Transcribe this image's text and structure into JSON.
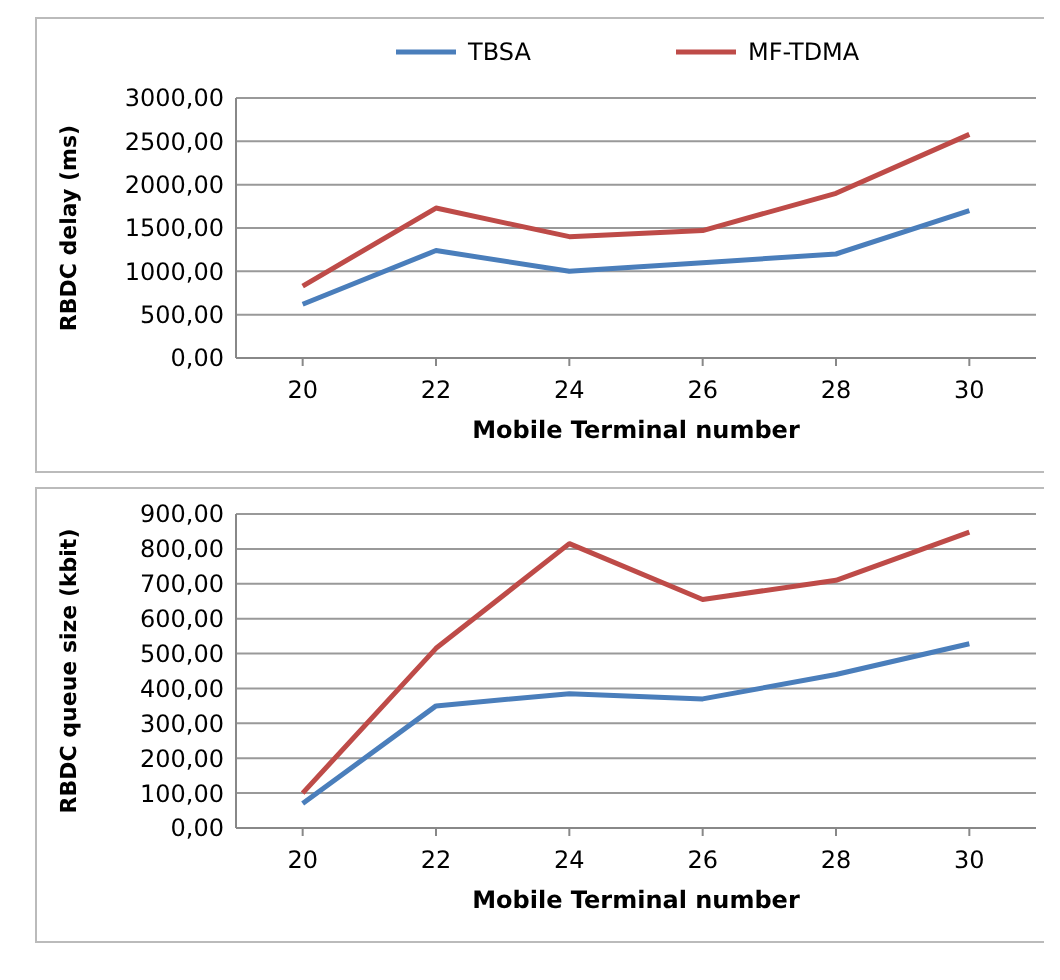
{
  "chart_data": [
    {
      "type": "line",
      "xlabel": "Mobile Terminal number",
      "ylabel": "RBDC delay (ms)",
      "categories": [
        "20",
        "22",
        "24",
        "26",
        "28",
        "30"
      ],
      "series": [
        {
          "name": "TBSA",
          "color": "#4a7ebb",
          "values": [
            620,
            1240,
            1000,
            1100,
            1200,
            1700
          ]
        },
        {
          "name": "MF-TDMA",
          "color": "#be4b48",
          "values": [
            830,
            1730,
            1400,
            1470,
            1900,
            2580
          ]
        }
      ],
      "ylim": [
        0,
        3000
      ],
      "yticks": [
        {
          "value": 0,
          "label": "0,00"
        },
        {
          "value": 500,
          "label": "500,00"
        },
        {
          "value": 1000,
          "label": "1000,00"
        },
        {
          "value": 1500,
          "label": "1500,00"
        },
        {
          "value": 2000,
          "label": "2000,00"
        },
        {
          "value": 2500,
          "label": "2500,00"
        },
        {
          "value": 3000,
          "label": "3000,00"
        }
      ],
      "grid": "y",
      "legend": "top",
      "marker": "none"
    },
    {
      "type": "line",
      "xlabel": "Mobile Terminal number",
      "ylabel": "RBDC queue size (kbit)",
      "categories": [
        "20",
        "22",
        "24",
        "26",
        "28",
        "30"
      ],
      "series": [
        {
          "color": "#4a7ebb",
          "values": [
            70,
            350,
            385,
            370,
            440,
            528
          ]
        },
        {
          "color": "#be4b48",
          "values": [
            100,
            515,
            815,
            655,
            710,
            848
          ]
        }
      ],
      "ylim": [
        0,
        900
      ],
      "yticks": [
        {
          "value": 0,
          "label": "0,00"
        },
        {
          "value": 100,
          "label": "100,00"
        },
        {
          "value": 200,
          "label": "200,00"
        },
        {
          "value": 300,
          "label": "300,00"
        },
        {
          "value": 400,
          "label": "400,00"
        },
        {
          "value": 500,
          "label": "500,00"
        },
        {
          "value": 600,
          "label": "600,00"
        },
        {
          "value": 700,
          "label": "700,00"
        },
        {
          "value": 800,
          "label": "800,00"
        },
        {
          "value": 900,
          "label": "900,00"
        }
      ],
      "grid": "y",
      "legend": false,
      "marker": "none"
    }
  ]
}
